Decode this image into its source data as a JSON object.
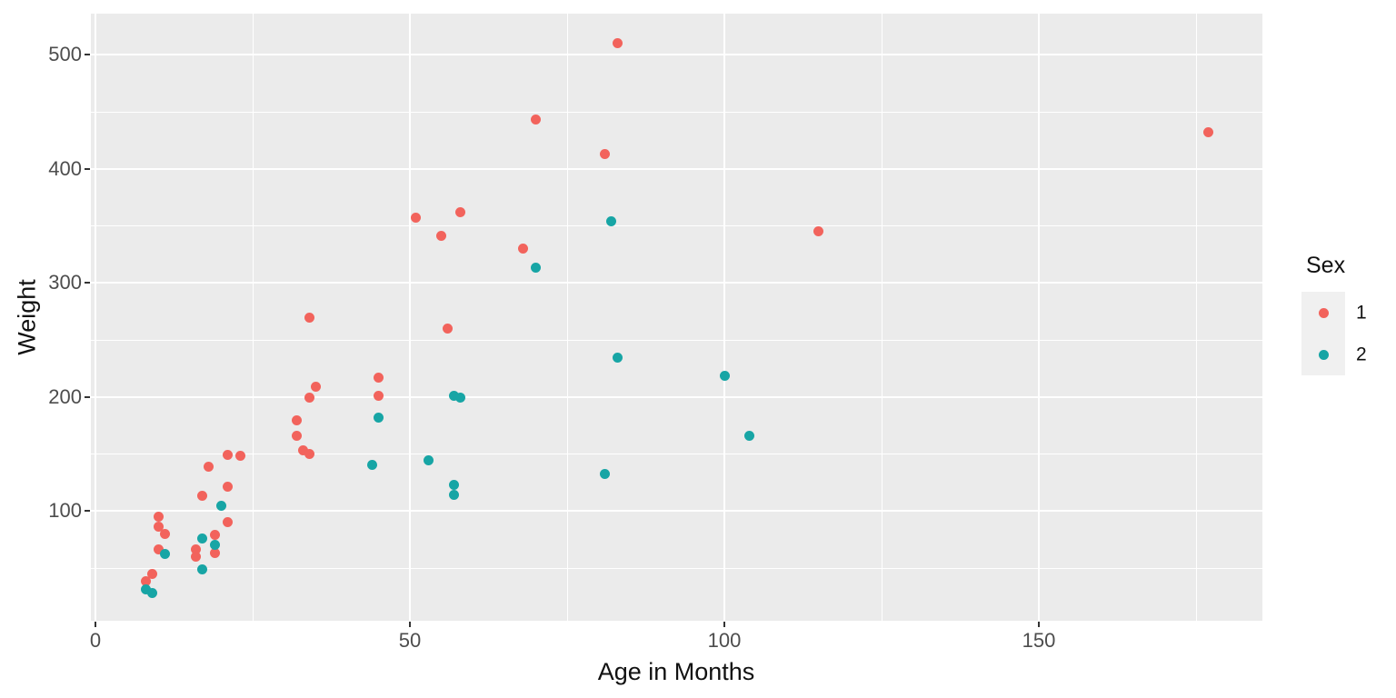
{
  "chart_data": {
    "type": "scatter",
    "title": "",
    "xlabel": "Age in Months",
    "ylabel": "Weight",
    "legend_title": "Sex",
    "legend_position": "right",
    "grid": true,
    "panel_bg": "#EBEBEB",
    "gridline_color": "#ffffff",
    "tick_label_color": "#4D4D4D",
    "xlim": [
      -1,
      186
    ],
    "ylim": [
      3,
      535
    ],
    "x_ticks": [
      0,
      50,
      100,
      150
    ],
    "y_ticks": [
      100,
      200,
      300,
      400,
      500
    ],
    "x_minor": [
      25,
      75,
      125,
      175
    ],
    "y_minor": [
      50,
      150,
      250,
      350,
      450
    ],
    "series": [
      {
        "name": "1",
        "color": "#F2635C",
        "points": [
          [
            8,
            38
          ],
          [
            9,
            45
          ],
          [
            10,
            66
          ],
          [
            10,
            86
          ],
          [
            10,
            95
          ],
          [
            11,
            80
          ],
          [
            16,
            60
          ],
          [
            16,
            66
          ],
          [
            17,
            113
          ],
          [
            18,
            139
          ],
          [
            19,
            63
          ],
          [
            19,
            79
          ],
          [
            21,
            90
          ],
          [
            21,
            121
          ],
          [
            21,
            149
          ],
          [
            23,
            148
          ],
          [
            32,
            166
          ],
          [
            32,
            179
          ],
          [
            33,
            153
          ],
          [
            34,
            150
          ],
          [
            34,
            199
          ],
          [
            34,
            269
          ],
          [
            35,
            209
          ],
          [
            45,
            201
          ],
          [
            45,
            217
          ],
          [
            51,
            357
          ],
          [
            55,
            341
          ],
          [
            56,
            260
          ],
          [
            58,
            362
          ],
          [
            68,
            330
          ],
          [
            70,
            443
          ],
          [
            81,
            413
          ],
          [
            83,
            510
          ],
          [
            115,
            345
          ],
          [
            177,
            432
          ]
        ]
      },
      {
        "name": "2",
        "color": "#17A5A5",
        "points": [
          [
            8,
            31
          ],
          [
            9,
            28
          ],
          [
            11,
            62
          ],
          [
            17,
            49
          ],
          [
            17,
            76
          ],
          [
            19,
            70
          ],
          [
            20,
            104
          ],
          [
            44,
            140
          ],
          [
            45,
            182
          ],
          [
            53,
            144
          ],
          [
            57,
            114
          ],
          [
            57,
            123
          ],
          [
            57,
            201
          ],
          [
            58,
            199
          ],
          [
            70,
            313
          ],
          [
            81,
            132
          ],
          [
            82,
            354
          ],
          [
            83,
            234
          ],
          [
            100,
            218
          ],
          [
            104,
            166
          ]
        ]
      }
    ]
  }
}
